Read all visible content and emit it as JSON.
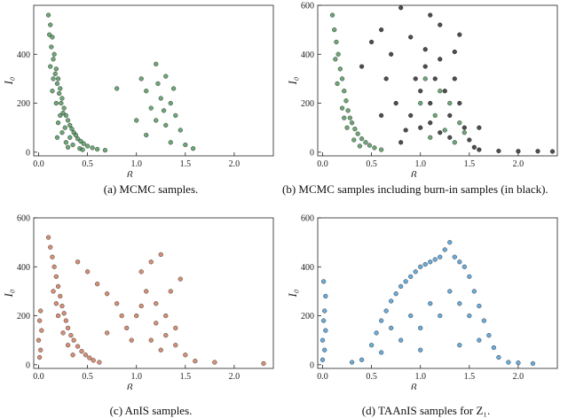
{
  "chart_data": [
    {
      "id": "a",
      "type": "scatter",
      "caption": "(a) MCMC samples.",
      "xlabel": "β",
      "ylabel": "I₀",
      "xlim": [
        -0.05,
        2.4
      ],
      "ylim": [
        -15,
        600
      ],
      "xticks": [
        0.0,
        0.5,
        1.0,
        1.5,
        2.0
      ],
      "xtick_labels": [
        "0.0",
        "0.5",
        "1.0",
        "1.5",
        "2.0"
      ],
      "yticks": [
        0,
        200,
        400
      ],
      "ytick_labels": [
        "0",
        "200",
        "400"
      ],
      "grid": false,
      "series": [
        {
          "color": "#3d8a4a",
          "points": [
            [
              0.1,
              560
            ],
            [
              0.12,
              520
            ],
            [
              0.11,
              480
            ],
            [
              0.14,
              470
            ],
            [
              0.13,
              430
            ],
            [
              0.16,
              400
            ],
            [
              0.15,
              380
            ],
            [
              0.18,
              340
            ],
            [
              0.17,
              320
            ],
            [
              0.2,
              300
            ],
            [
              0.19,
              280
            ],
            [
              0.22,
              260
            ],
            [
              0.21,
              240
            ],
            [
              0.24,
              220
            ],
            [
              0.23,
              200
            ],
            [
              0.26,
              180
            ],
            [
              0.25,
              160
            ],
            [
              0.28,
              150
            ],
            [
              0.3,
              130
            ],
            [
              0.32,
              110
            ],
            [
              0.34,
              95
            ],
            [
              0.36,
              80
            ],
            [
              0.38,
              70
            ],
            [
              0.4,
              55
            ],
            [
              0.43,
              45
            ],
            [
              0.46,
              35
            ],
            [
              0.5,
              25
            ],
            [
              0.55,
              18
            ],
            [
              0.6,
              12
            ],
            [
              0.68,
              8
            ],
            [
              0.15,
              300
            ],
            [
              0.18,
              200
            ],
            [
              0.22,
              150
            ],
            [
              0.27,
              100
            ],
            [
              0.32,
              60
            ],
            [
              0.2,
              120
            ],
            [
              0.28,
              40
            ],
            [
              0.35,
              30
            ],
            [
              0.14,
              250
            ],
            [
              0.24,
              80
            ],
            [
              0.12,
              350
            ],
            [
              0.3,
              20
            ],
            [
              0.42,
              15
            ],
            [
              0.19,
              60
            ],
            [
              0.45,
              10
            ],
            [
              1.05,
              300
            ],
            [
              1.2,
              360
            ],
            [
              1.3,
              310
            ],
            [
              1.1,
              250
            ],
            [
              1.25,
              220
            ],
            [
              1.35,
              200
            ],
            [
              1.15,
              180
            ],
            [
              1.4,
              150
            ],
            [
              1.2,
              130
            ],
            [
              1.3,
              110
            ],
            [
              1.45,
              90
            ],
            [
              1.1,
              70
            ],
            [
              1.35,
              40
            ],
            [
              1.5,
              30
            ],
            [
              1.58,
              15
            ],
            [
              1.0,
              130
            ],
            [
              1.28,
              170
            ],
            [
              1.38,
              260
            ],
            [
              1.22,
              280
            ],
            [
              0.8,
              260
            ]
          ]
        }
      ]
    },
    {
      "id": "b",
      "type": "scatter",
      "caption": "(b) MCMC samples including burn-in samples (in black).",
      "xlabel": "β",
      "ylabel": "I₀",
      "xlim": [
        -0.05,
        2.4
      ],
      "ylim": [
        -15,
        600
      ],
      "xticks": [
        0.0,
        0.5,
        1.0,
        1.5,
        2.0
      ],
      "xtick_labels": [
        "0.0",
        "0.5",
        "1.0",
        "1.5",
        "2.0"
      ],
      "yticks": [
        0,
        200,
        400,
        600
      ],
      "ytick_labels": [
        "0",
        "200",
        "400",
        "600"
      ],
      "grid": false,
      "series": [
        {
          "color": "#111111",
          "points": [
            [
              0.95,
              300
            ],
            [
              1.0,
              250
            ],
            [
              1.05,
              350
            ],
            [
              1.1,
              200
            ],
            [
              1.15,
              300
            ],
            [
              1.2,
              380
            ],
            [
              1.25,
              250
            ],
            [
              1.3,
              150
            ],
            [
              1.35,
              300
            ],
            [
              1.4,
              200
            ],
            [
              1.45,
              100
            ],
            [
              1.5,
              50
            ],
            [
              1.0,
              100
            ],
            [
              1.1,
              120
            ],
            [
              1.2,
              80
            ],
            [
              1.3,
              60
            ],
            [
              0.9,
              150
            ],
            [
              0.85,
              90
            ],
            [
              0.8,
              40
            ],
            [
              1.55,
              20
            ],
            [
              1.6,
              10
            ],
            [
              1.8,
              5
            ],
            [
              2.0,
              4
            ],
            [
              2.2,
              4
            ],
            [
              2.35,
              3
            ],
            [
              0.6,
              500
            ],
            [
              0.8,
              590
            ],
            [
              1.1,
              560
            ],
            [
              0.5,
              450
            ],
            [
              0.7,
              400
            ],
            [
              0.4,
              350
            ],
            [
              0.65,
              300
            ],
            [
              1.4,
              480
            ],
            [
              1.2,
              520
            ],
            [
              0.9,
              470
            ],
            [
              0.75,
              200
            ],
            [
              0.6,
              150
            ],
            [
              1.05,
              420
            ],
            [
              1.35,
              410
            ],
            [
              1.6,
              100
            ]
          ]
        },
        {
          "color": "#3d8a4a",
          "points": [
            [
              0.1,
              560
            ],
            [
              0.12,
              500
            ],
            [
              0.14,
              450
            ],
            [
              0.16,
              400
            ],
            [
              0.18,
              340
            ],
            [
              0.2,
              300
            ],
            [
              0.22,
              250
            ],
            [
              0.24,
              210
            ],
            [
              0.26,
              170
            ],
            [
              0.28,
              140
            ],
            [
              0.3,
              120
            ],
            [
              0.33,
              95
            ],
            [
              0.36,
              75
            ],
            [
              0.4,
              55
            ],
            [
              0.44,
              40
            ],
            [
              0.48,
              28
            ],
            [
              0.53,
              18
            ],
            [
              0.6,
              10
            ],
            [
              0.15,
              280
            ],
            [
              0.2,
              180
            ],
            [
              0.25,
              100
            ],
            [
              0.32,
              50
            ],
            [
              0.38,
              25
            ],
            [
              0.13,
              380
            ],
            [
              0.22,
              140
            ],
            [
              1.05,
              300
            ],
            [
              1.2,
              250
            ],
            [
              1.3,
              200
            ],
            [
              1.15,
              150
            ],
            [
              1.4,
              120
            ],
            [
              1.25,
              90
            ],
            [
              1.1,
              60
            ],
            [
              1.35,
              40
            ],
            [
              1.0,
              200
            ],
            [
              1.45,
              80
            ]
          ]
        }
      ]
    },
    {
      "id": "c",
      "type": "scatter",
      "caption": "(c) AnIS samples.",
      "xlabel": "β",
      "ylabel": "I₀",
      "xlim": [
        -0.05,
        2.4
      ],
      "ylim": [
        -15,
        600
      ],
      "xticks": [
        0.0,
        0.5,
        1.0,
        1.5,
        2.0
      ],
      "xtick_labels": [
        "0.0",
        "0.5",
        "1.0",
        "1.5",
        "2.0"
      ],
      "yticks": [
        0,
        200,
        400,
        600
      ],
      "ytick_labels": [
        "0",
        "200",
        "400",
        "600"
      ],
      "grid": false,
      "series": [
        {
          "color": "#c8694a",
          "points": [
            [
              0.1,
              520
            ],
            [
              0.12,
              480
            ],
            [
              0.14,
              440
            ],
            [
              0.16,
              400
            ],
            [
              0.18,
              360
            ],
            [
              0.2,
              320
            ],
            [
              0.22,
              280
            ],
            [
              0.24,
              240
            ],
            [
              0.26,
              210
            ],
            [
              0.28,
              180
            ],
            [
              0.3,
              150
            ],
            [
              0.33,
              120
            ],
            [
              0.36,
              100
            ],
            [
              0.4,
              75
            ],
            [
              0.44,
              55
            ],
            [
              0.48,
              40
            ],
            [
              0.52,
              28
            ],
            [
              0.56,
              18
            ],
            [
              0.62,
              10
            ],
            [
              0.15,
              300
            ],
            [
              0.2,
              200
            ],
            [
              0.25,
              130
            ],
            [
              0.3,
              80
            ],
            [
              0.35,
              40
            ],
            [
              0.18,
              250
            ],
            [
              0.02,
              220
            ],
            [
              0.01,
              180
            ],
            [
              0.03,
              140
            ],
            [
              0.0,
              100
            ],
            [
              0.02,
              60
            ],
            [
              0.01,
              30
            ],
            [
              0.5,
              380
            ],
            [
              0.6,
              330
            ],
            [
              0.7,
              290
            ],
            [
              0.8,
              250
            ],
            [
              0.4,
              420
            ],
            [
              0.9,
              150
            ],
            [
              0.85,
              200
            ],
            [
              1.05,
              380
            ],
            [
              1.15,
              420
            ],
            [
              1.25,
              450
            ],
            [
              1.1,
              300
            ],
            [
              1.2,
              250
            ],
            [
              1.3,
              200
            ],
            [
              1.4,
              150
            ],
            [
              1.35,
              300
            ],
            [
              1.45,
              350
            ],
            [
              1.0,
              200
            ],
            [
              1.15,
              100
            ],
            [
              1.25,
              60
            ],
            [
              1.5,
              40
            ],
            [
              1.6,
              15
            ],
            [
              1.4,
              80
            ],
            [
              0.95,
              100
            ],
            [
              1.2,
              170
            ],
            [
              1.05,
              240
            ],
            [
              1.3,
              120
            ],
            [
              2.3,
              5
            ],
            [
              1.8,
              10
            ],
            [
              0.7,
              130
            ]
          ]
        }
      ]
    },
    {
      "id": "d",
      "type": "scatter",
      "caption": "(d) TAAnIS samples for Z₁.",
      "xlabel": "β",
      "ylabel": "I₀",
      "xlim": [
        -0.05,
        2.4
      ],
      "ylim": [
        -15,
        600
      ],
      "xticks": [
        0.0,
        0.5,
        1.0,
        1.5,
        2.0
      ],
      "xtick_labels": [
        "0.0",
        "0.5",
        "1.0",
        "1.5",
        "2.0"
      ],
      "yticks": [
        0,
        200,
        400,
        600
      ],
      "ytick_labels": [
        "0",
        "200",
        "400",
        "600"
      ],
      "grid": false,
      "series": [
        {
          "color": "#3a8fcc",
          "points": [
            [
              0.5,
              80
            ],
            [
              0.55,
              130
            ],
            [
              0.6,
              180
            ],
            [
              0.65,
              220
            ],
            [
              0.7,
              260
            ],
            [
              0.75,
              290
            ],
            [
              0.8,
              320
            ],
            [
              0.85,
              340
            ],
            [
              0.9,
              360
            ],
            [
              0.95,
              380
            ],
            [
              1.0,
              400
            ],
            [
              1.05,
              410
            ],
            [
              1.1,
              420
            ],
            [
              1.15,
              430
            ],
            [
              1.2,
              440
            ],
            [
              1.25,
              470
            ],
            [
              1.3,
              500
            ],
            [
              1.35,
              440
            ],
            [
              1.4,
              420
            ],
            [
              1.45,
              400
            ],
            [
              1.5,
              360
            ],
            [
              1.55,
              300
            ],
            [
              1.6,
              240
            ],
            [
              1.65,
              180
            ],
            [
              1.7,
              120
            ],
            [
              1.75,
              70
            ],
            [
              1.8,
              30
            ],
            [
              0.7,
              150
            ],
            [
              0.9,
              200
            ],
            [
              1.1,
              250
            ],
            [
              1.3,
              300
            ],
            [
              1.5,
              200
            ],
            [
              0.8,
              100
            ],
            [
              1.0,
              150
            ],
            [
              1.2,
              200
            ],
            [
              1.4,
              250
            ],
            [
              1.6,
              100
            ],
            [
              0.6,
              50
            ],
            [
              1.0,
              60
            ],
            [
              1.4,
              80
            ],
            [
              0.4,
              20
            ],
            [
              0.3,
              10
            ],
            [
              1.9,
              10
            ],
            [
              2.0,
              8
            ],
            [
              2.15,
              5
            ],
            [
              0.02,
              220
            ],
            [
              0.01,
              180
            ],
            [
              0.03,
              140
            ],
            [
              0.0,
              100
            ],
            [
              0.02,
              60
            ],
            [
              0.01,
              340
            ],
            [
              0.03,
              280
            ],
            [
              0.0,
              20
            ]
          ]
        }
      ]
    }
  ]
}
